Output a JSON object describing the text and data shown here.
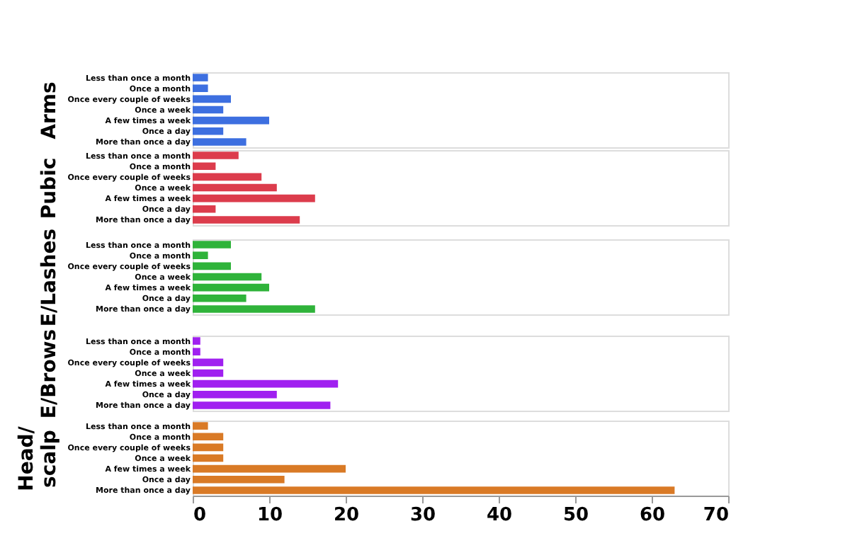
{
  "chart_data": [
    {
      "type": "bar",
      "orientation": "horizontal",
      "ylabel": "Arms",
      "categories": [
        "Less than once a month",
        "Once a month",
        "Once every couple of weeks",
        "Once a week",
        "A few times a week",
        "Once a day",
        "More than once a day"
      ],
      "values": [
        2,
        2,
        5,
        4,
        10,
        4,
        7
      ],
      "color": "#3d6fe0",
      "xlim": [
        0,
        70
      ],
      "xticks": [
        0,
        10,
        20,
        30,
        40,
        50,
        60,
        70
      ],
      "tick_labels": "y",
      "grid": false
    },
    {
      "type": "bar",
      "orientation": "horizontal",
      "ylabel": "Pubic",
      "categories": [
        "Less than once a month",
        "Once a month",
        "Once every couple of weeks",
        "Once a week",
        "A few times a week",
        "Once a day",
        "More than once a day"
      ],
      "values": [
        6,
        3,
        9,
        11,
        16,
        3,
        14
      ],
      "color": "#dc3c4c",
      "xlim": [
        0,
        70
      ],
      "xticks": [
        0,
        10,
        20,
        30,
        40,
        50,
        60,
        70
      ],
      "tick_labels": "y",
      "grid": false
    },
    {
      "type": "bar",
      "orientation": "horizontal",
      "ylabel": "E/Lashes",
      "categories": [
        "Less than once a month",
        "Once a month",
        "Once every couple of weeks",
        "Once a week",
        "A few times a week",
        "Once a day",
        "More than once a day"
      ],
      "values": [
        5,
        2,
        5,
        9,
        10,
        7,
        16
      ],
      "color": "#2fb33a",
      "xlim": [
        0,
        70
      ],
      "xticks": [
        0,
        10,
        20,
        30,
        40,
        50,
        60,
        70
      ],
      "tick_labels": "y",
      "grid": false
    },
    {
      "type": "bar",
      "orientation": "horizontal",
      "ylabel": "E/Brows",
      "categories": [
        "Less than once a month",
        "Once a month",
        "Once every couple of weeks",
        "Once a week",
        "A few times a week",
        "Once a day",
        "More than once a day"
      ],
      "values": [
        1,
        1,
        4,
        4,
        19,
        11,
        18
      ],
      "color": "#a020f0",
      "xlim": [
        0,
        70
      ],
      "xticks": [
        0,
        10,
        20,
        30,
        40,
        50,
        60,
        70
      ],
      "tick_labels": "y",
      "grid": false
    },
    {
      "type": "bar",
      "orientation": "horizontal",
      "ylabel": "Head/\nscalp",
      "categories": [
        "Less than once a month",
        "Once a month",
        "Once every couple of weeks",
        "Once a week",
        "A few times a week",
        "Once a day",
        "More than once a day"
      ],
      "values": [
        2,
        4,
        4,
        4,
        20,
        12,
        63
      ],
      "color": "#d97a26",
      "xlim": [
        0,
        70
      ],
      "xticks": [
        0,
        10,
        20,
        30,
        40,
        50,
        60,
        70
      ],
      "grid": false
    }
  ]
}
